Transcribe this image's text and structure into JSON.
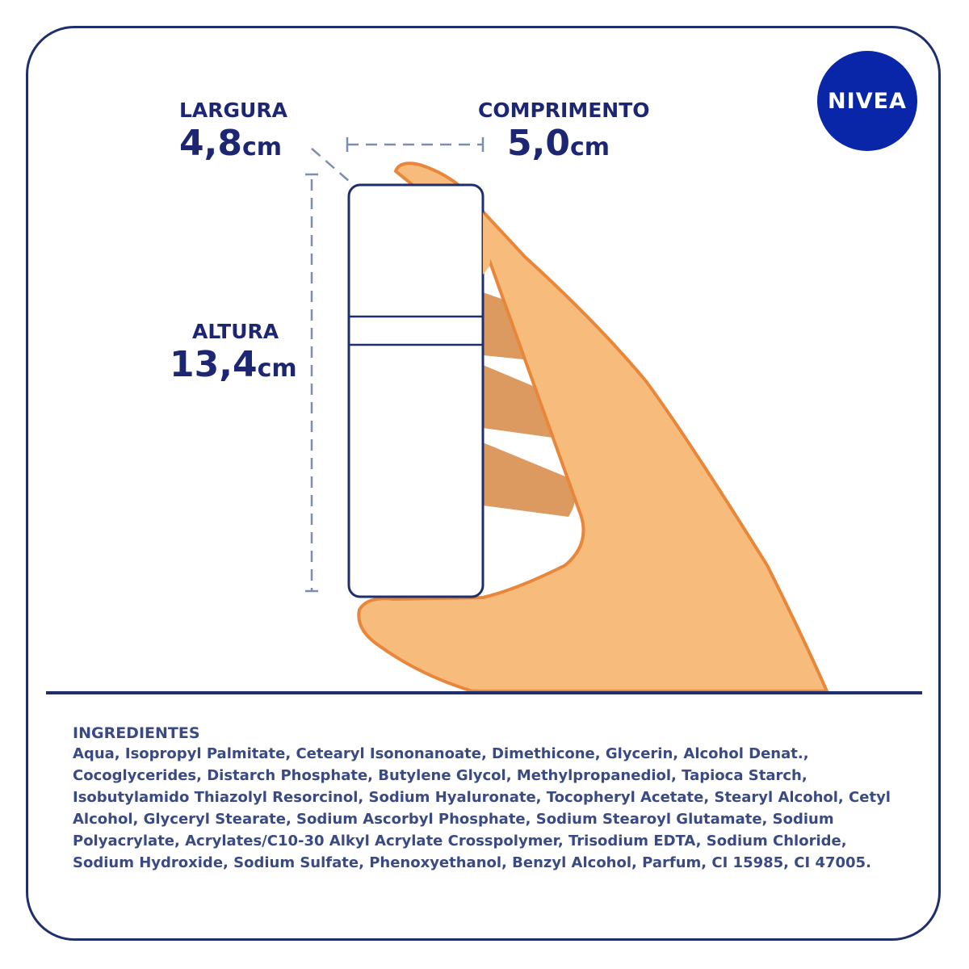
{
  "brand": {
    "logo_text": "NIVEA",
    "logo_color": "#0a26a8",
    "text_color": "#1c2672",
    "frame_color": "#1f2f6e"
  },
  "dimensions": {
    "largura": {
      "label": "LARGURA",
      "value": "4,8",
      "unit": "cm"
    },
    "comprimento": {
      "label": "COMPRIMENTO",
      "value": "5,0",
      "unit": "cm"
    },
    "altura": {
      "label": "ALTURA",
      "value": "13,4",
      "unit": "cm"
    }
  },
  "illustration": {
    "hand_skin_color": "#f7bb7c",
    "hand_outline_color": "#e8863a",
    "finger_shadow_color": "#dc9a61",
    "product_outline_color": "#1f2f6e",
    "dashed_guide_color": "#7c8db0"
  },
  "ingredients": {
    "title": "INGREDIENTES",
    "text": "Aqua, Isopropyl Palmitate, Cetearyl Isononanoate, Dimethicone, Glycerin, Alcohol Denat., Cocoglycerides, Distarch Phosphate, Butylene Glycol, Methylpropanediol, Tapioca Starch, Isobutylamido Thiazolyl Resorcinol, Sodium Hyaluronate, Tocopheryl Acetate, Stearyl Alcohol, Cetyl Alcohol, Glyceryl Stearate, Sodium Ascorbyl Phosphate, Sodium Stearoyl Glutamate, Sodium Polyacrylate, Acrylates/C10-30 Alkyl Acrylate Crosspolymer, Trisodium EDTA, Sodium Chloride, Sodium Hydroxide, Sodium Sulfate, Phenoxyethanol, Benzyl Alcohol, Parfum, CI 15985, CI 47005."
  }
}
